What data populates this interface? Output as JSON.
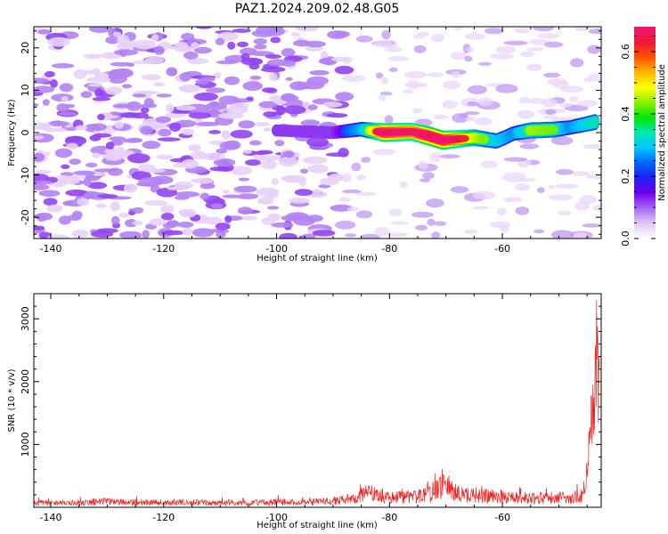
{
  "title": "PAZ1.2024.209.02.48.G05",
  "chart_data": [
    {
      "type": "heatmap",
      "xlabel": "Height of straight line (km)",
      "ylabel": "Frequency (Hz)",
      "xlim": [
        -143,
        -42.5
      ],
      "ylim": [
        -25,
        25
      ],
      "xticks": [
        -140,
        -120,
        -100,
        -80,
        -60
      ],
      "xtick_labels": [
        "-140",
        "-120",
        "-100",
        "-80",
        "-60"
      ],
      "yticks": [
        -20,
        -10,
        0,
        10,
        20
      ],
      "ytick_labels": [
        "-20",
        "-10",
        "0",
        "10",
        "20"
      ],
      "colorbar": {
        "label": "Normalized spectral amplitude",
        "range": [
          0,
          0.68
        ],
        "ticks": [
          0.0,
          0.2,
          0.4,
          0.6
        ],
        "tick_labels": [
          "0.0",
          "0.2",
          "0.4",
          "0.6"
        ],
        "colormap": [
          "#ffffff",
          "#e2c8f7",
          "#a56bf3",
          "#7200f0",
          "#1e1ef0",
          "#0064ff",
          "#00c8ff",
          "#00e6b4",
          "#00e600",
          "#8cf000",
          "#ffff00",
          "#ffb400",
          "#ff5000",
          "#f0143c",
          "#f01478"
        ]
      },
      "ridge": [
        {
          "x": -100,
          "y": 0.5,
          "amplitude": 0.15
        },
        {
          "x": -90,
          "y": 0.0,
          "amplitude": 0.2
        },
        {
          "x": -85,
          "y": 0.8,
          "amplitude": 0.32
        },
        {
          "x": -81,
          "y": 0.0,
          "amplitude": 0.6
        },
        {
          "x": -76,
          "y": 0.2,
          "amplitude": 0.55
        },
        {
          "x": -73,
          "y": -0.8,
          "amplitude": 0.62
        },
        {
          "x": -70.5,
          "y": -1.8,
          "amplitude": 0.62
        },
        {
          "x": -65,
          "y": -1.2,
          "amplitude": 0.45
        },
        {
          "x": -61,
          "y": -2.0,
          "amplitude": 0.35
        },
        {
          "x": -58,
          "y": -0.2,
          "amplitude": 0.3
        },
        {
          "x": -55,
          "y": 0.5,
          "amplitude": 0.42
        },
        {
          "x": -51,
          "y": 0.7,
          "amplitude": 0.4
        },
        {
          "x": -48,
          "y": 1.2,
          "amplitude": 0.3
        },
        {
          "x": -43.5,
          "y": 2.5,
          "amplitude": 0.4
        }
      ],
      "noise_regions": [
        {
          "x_range": [
            -143,
            -88
          ],
          "y_range": [
            -25,
            25
          ],
          "level": "strong"
        },
        {
          "x_range": [
            -88,
            -42.5
          ],
          "y_range": [
            -25,
            25
          ],
          "level": "weak"
        }
      ]
    },
    {
      "type": "line",
      "xlabel": "Height of straight line (km)",
      "ylabel": "SNR (10 * v/v)",
      "xlim": [
        -143,
        -42.5
      ],
      "ylim": [
        0,
        3400
      ],
      "xticks": [
        -140,
        -120,
        -100,
        -80,
        -60
      ],
      "xtick_labels": [
        "-140",
        "-120",
        "-100",
        "-80",
        "-60"
      ],
      "yticks": [
        1000,
        2000,
        3000
      ],
      "ytick_labels": [
        "1000",
        "2000",
        "3000"
      ],
      "color": "#ee2222",
      "series": [
        {
          "x": [
            -143,
            -140,
            -135,
            -130,
            -125,
            -120,
            -115,
            -110,
            -105,
            -100,
            -95,
            -90,
            -86,
            -84,
            -80,
            -75,
            -72,
            -70,
            -68,
            -65,
            -60,
            -55,
            -50,
            -46,
            -45.5,
            -45,
            -44.5,
            -44,
            -43.5,
            -43,
            -42.8
          ],
          "y": [
            80,
            80,
            90,
            110,
            90,
            85,
            90,
            80,
            85,
            100,
            85,
            120,
            160,
            270,
            190,
            200,
            320,
            400,
            260,
            230,
            200,
            170,
            180,
            200,
            320,
            650,
            1500,
            2300,
            2900,
            2600,
            3400
          ]
        }
      ]
    }
  ]
}
